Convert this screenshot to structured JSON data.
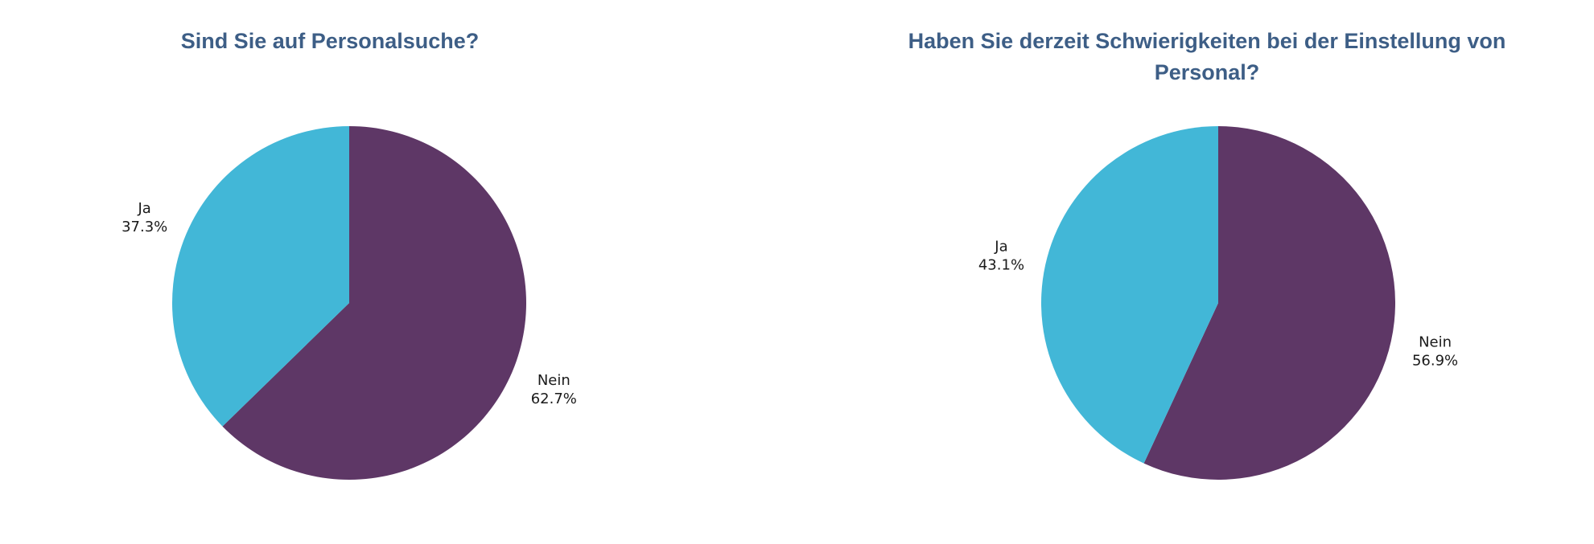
{
  "colors": {
    "ja": "#42b7d7",
    "nein": "#5e3766",
    "title": "#3d5e86"
  },
  "chart_data": [
    {
      "type": "pie",
      "title": "Sind Sie auf Personalsuche?",
      "slices": [
        {
          "label": "Nein",
          "value": 62.7,
          "display": "62.7%"
        },
        {
          "label": "Ja",
          "value": 37.3,
          "display": "37.3%"
        }
      ],
      "start_angle": "12 o'clock",
      "direction": "clockwise",
      "legend": "none"
    },
    {
      "type": "pie",
      "title": "Haben Sie derzeit Schwierigkeiten bei der Einstellung von Personal?",
      "slices": [
        {
          "label": "Nein",
          "value": 56.9,
          "display": "56.9%"
        },
        {
          "label": "Ja",
          "value": 43.1,
          "display": "43.1%"
        }
      ],
      "start_angle": "12 o'clock",
      "direction": "clockwise",
      "legend": "none"
    }
  ]
}
